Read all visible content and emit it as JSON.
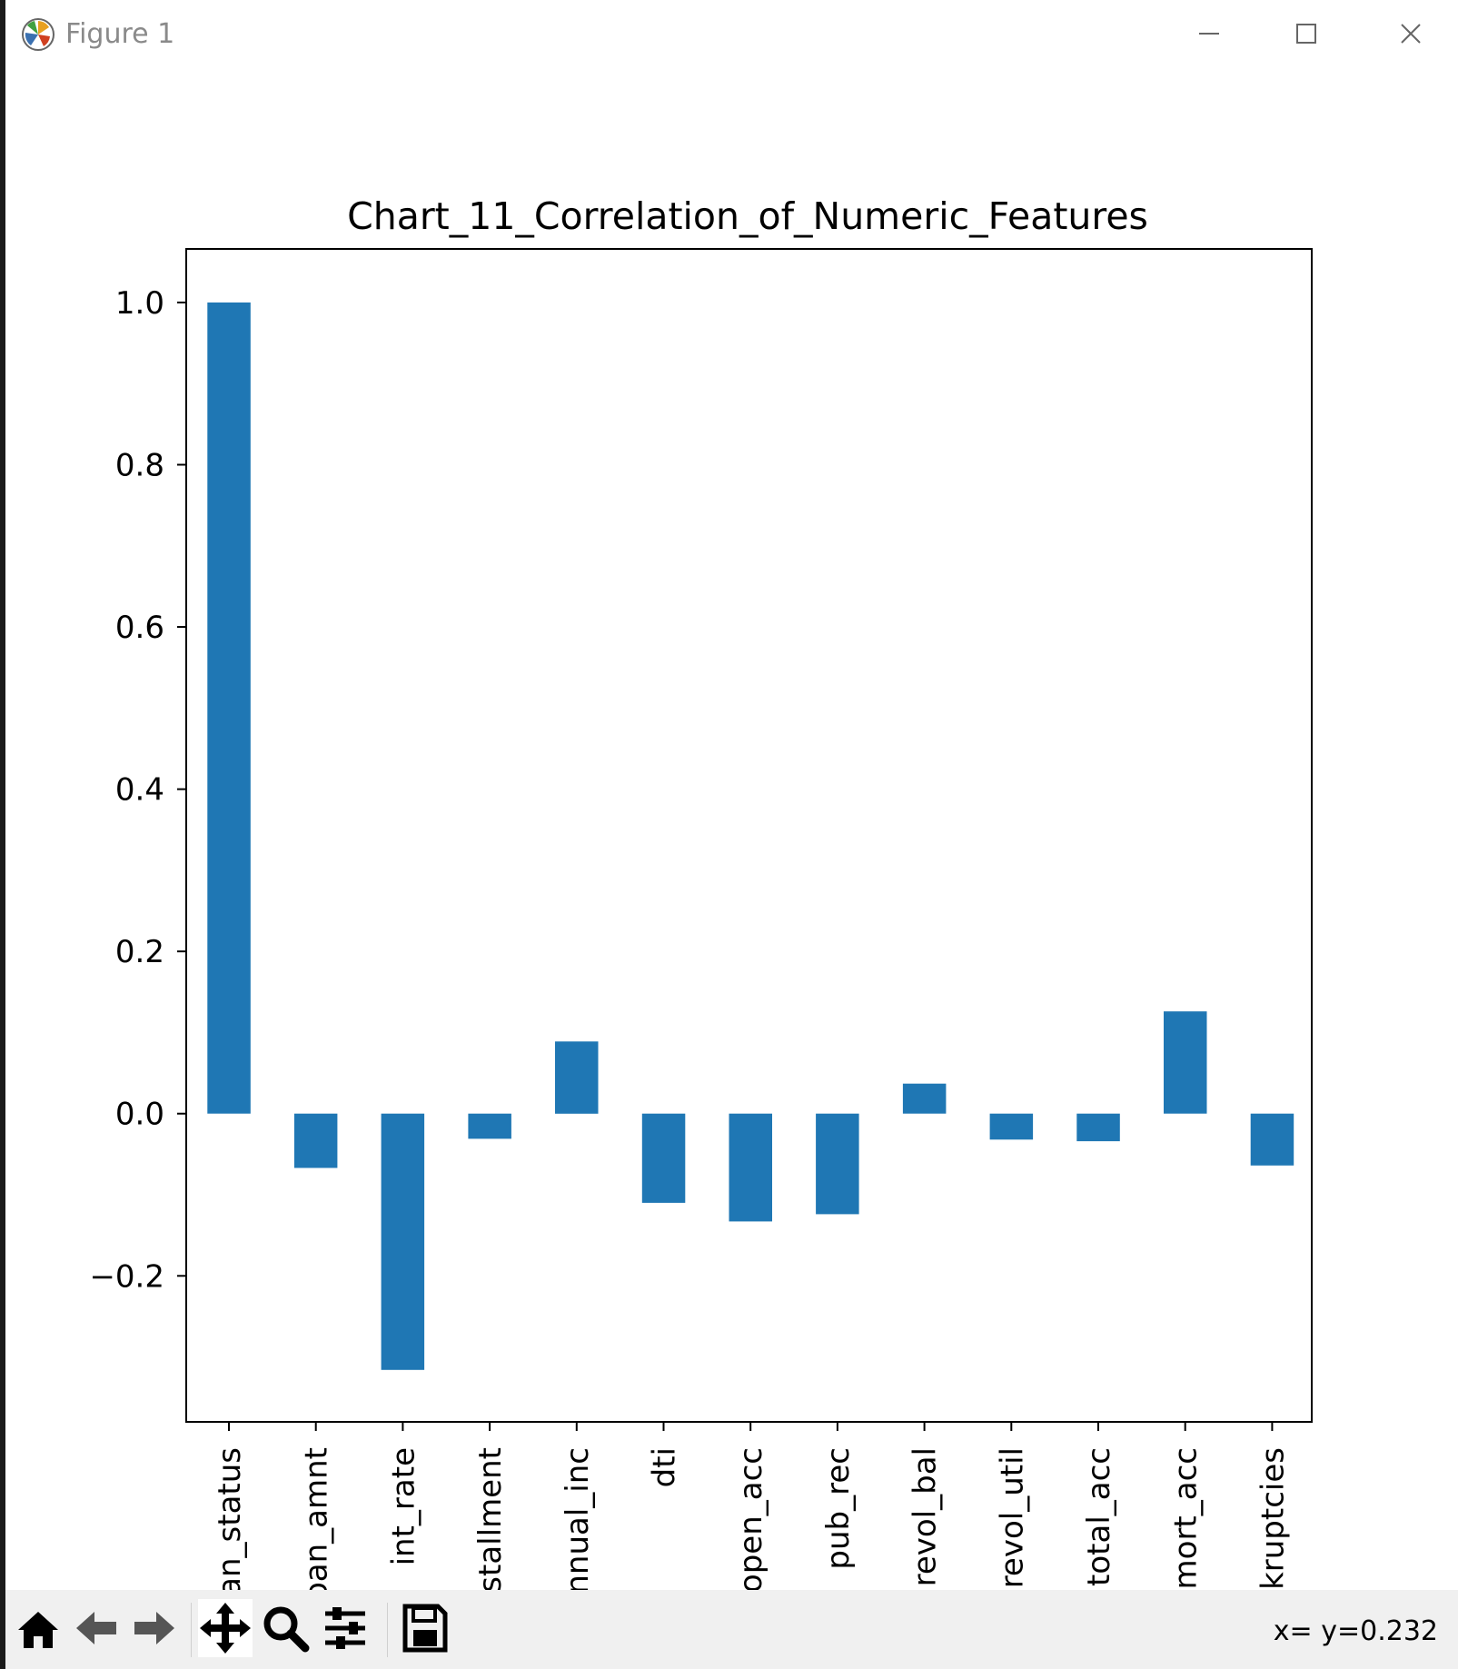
{
  "window": {
    "title": "Figure 1",
    "icon": "matplotlib-logo-icon",
    "controls": [
      "minimize-icon",
      "maximize-icon",
      "close-icon"
    ]
  },
  "toolbar": {
    "buttons": [
      "home-icon",
      "back-icon",
      "forward-icon",
      "pan-icon",
      "zoom-icon",
      "configure-icon",
      "save-icon"
    ],
    "active": "pan-icon",
    "coords": "x= y=0.232"
  },
  "chart_data": {
    "type": "bar",
    "title": "Chart_11_Correlation_of_Numeric_Features",
    "xlabel": "",
    "ylabel": "",
    "categories": [
      "an_status",
      "oan_amnt",
      "int_rate",
      "nstallment",
      "nnual_inc",
      "dti",
      "open_acc",
      "pub_rec",
      "revol_bal",
      "revol_util",
      "total_acc",
      "mort_acc",
      "kruptcies"
    ],
    "values": [
      1.0,
      -0.067,
      -0.316,
      -0.031,
      0.089,
      -0.11,
      -0.133,
      -0.124,
      0.037,
      -0.032,
      -0.034,
      0.126,
      -0.064
    ],
    "ylim": [
      -0.38,
      1.066
    ],
    "yticks": [
      -0.2,
      0.0,
      0.2,
      0.4,
      0.6,
      0.8,
      1.0
    ],
    "ytick_labels": [
      "−0.2",
      "0.0",
      "0.2",
      "0.4",
      "0.6",
      "0.8",
      "1.0"
    ],
    "bar_color": "#1f77b4",
    "grid": false,
    "legend": "none"
  }
}
